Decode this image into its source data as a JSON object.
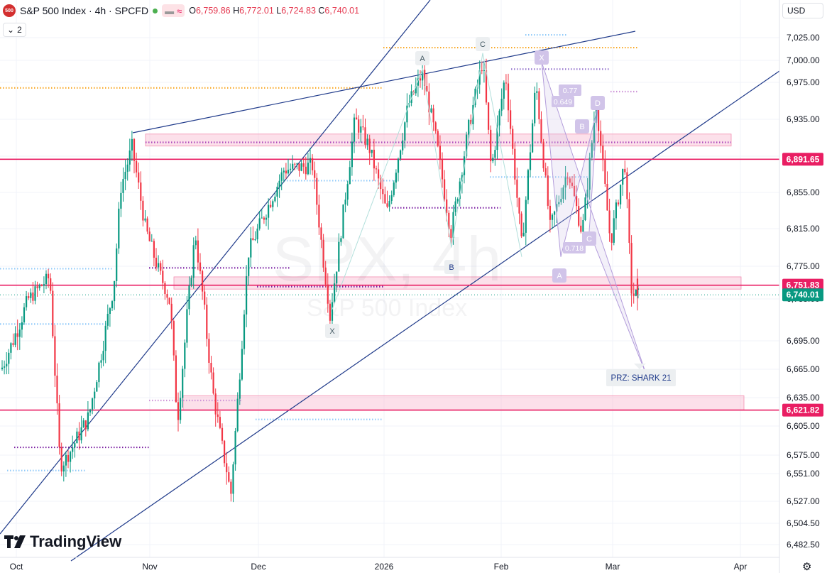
{
  "header": {
    "symbol_icon": "500",
    "title": "S&P 500 Index · 4h · SPCFD",
    "pill_icon": "≈",
    "ohlc": {
      "o_label": "O",
      "o": "6,759.86",
      "h_label": "H",
      "h": "6,772.01",
      "l_label": "L",
      "l": "6,724.83",
      "c_label": "C",
      "c": "6,740.01"
    }
  },
  "legend_toggle": {
    "icon": "chevron-down-icon",
    "count": "2"
  },
  "currency": "USD",
  "logo_text": "TradingView",
  "watermark": {
    "symbol": "SPX, 4h",
    "name": "S&P 500 Index"
  },
  "chart_data": {
    "type": "candlestick",
    "y_ticks": [
      "7,025.00",
      "7,000.00",
      "6,975.00",
      "6,935.00",
      "6,895.00",
      "6,855.00",
      "6,815.00",
      "6,775.00",
      "6,735.00",
      "6,695.00",
      "6,665.00",
      "6,635.00",
      "6,605.00",
      "6,575.00",
      "6,551.00",
      "6,527.00",
      "6,504.50",
      "6,482.50"
    ],
    "x_ticks": [
      "Oct",
      "Nov",
      "Dec",
      "2026",
      "Feb",
      "Mar",
      "Apr"
    ],
    "price_labels": [
      {
        "value": 6891.65,
        "text": "6,891.65",
        "color": "#e91e63"
      },
      {
        "value": 6751.83,
        "text": "6,751.83",
        "color": "#e91e63"
      },
      {
        "value": 6740.01,
        "text": "6,740.01",
        "color": "#089981"
      },
      {
        "value": 6621.82,
        "text": "6,621.82",
        "color": "#e91e63"
      }
    ],
    "horizontal_lines": [
      6891.65,
      6751.83,
      6621.82
    ],
    "pattern_points": [
      "X",
      "A",
      "B",
      "C",
      "X",
      "A",
      "B",
      "C",
      "D"
    ],
    "fib_labels": [
      "0.77",
      "0.649",
      "0.718"
    ],
    "prz_label": "PRZ: SHARK 21",
    "colors": {
      "up": "#089981",
      "down": "#f23645",
      "level": "#e91e63",
      "trend": "#1f3a8a"
    }
  }
}
